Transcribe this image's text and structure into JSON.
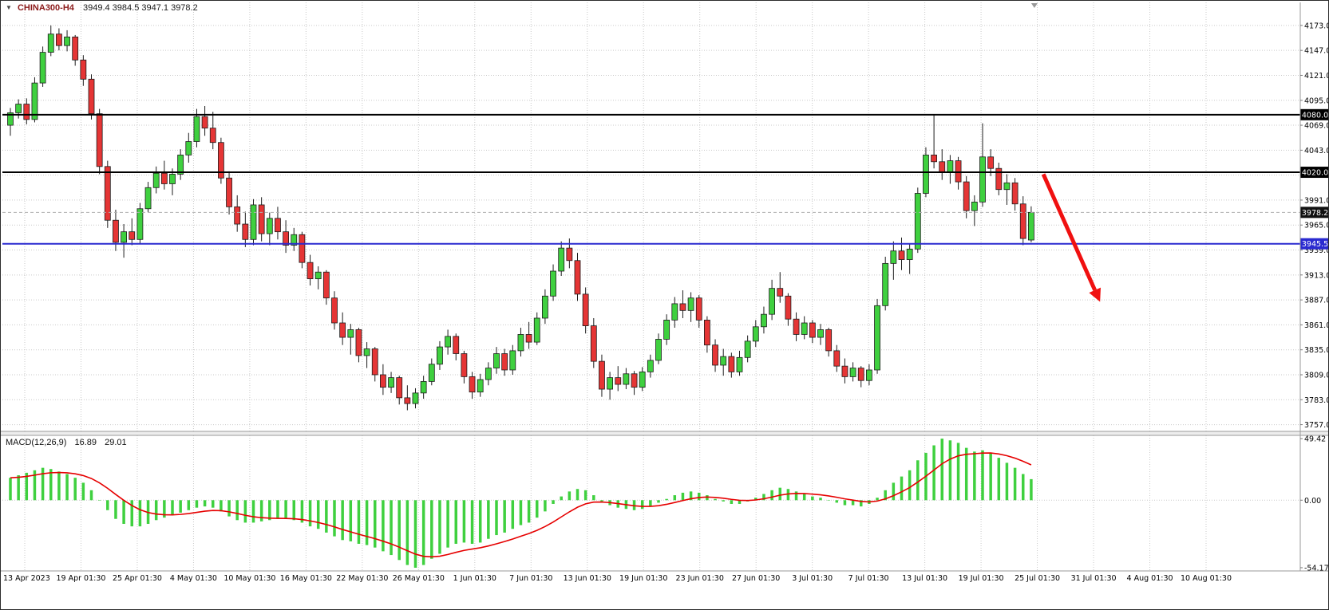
{
  "header": {
    "dropdown_icon": "▼",
    "symbol": "CHINA300-H4",
    "ohlc_text": "3949.4 3984.5 3947.1 3978.2"
  },
  "macd_label": {
    "name": "MACD(12,26,9)",
    "main_value": "16.89",
    "signal_value": "29.01"
  },
  "colors": {
    "bull": "#3fd03f",
    "bear": "#e53535",
    "candle_outline": "#1d1d1d",
    "wick": "#1d1d1d",
    "grid": "#c9c9c9",
    "hist": "#3fd03f",
    "signal": "#e60000",
    "separator": "#9a9a9a",
    "arrow": "#f01010",
    "badge_text": "#ffffff"
  },
  "price_scale": {
    "ticks": [
      "4173.0",
      "4147.0",
      "4121.0",
      "4095.0",
      "4069.0",
      "4043.0",
      "4017.0",
      "3991.0",
      "3965.0",
      "3939.0",
      "3913.0",
      "3887.0",
      "3861.0",
      "3835.0",
      "3809.0",
      "3783.0",
      "3757.0"
    ]
  },
  "macd_scale": {
    "labels": [
      {
        "text": "49.42",
        "value": 49.42
      },
      {
        "text": "0.00",
        "value": 0
      },
      {
        "text": "-54.17",
        "value": -54.17
      }
    ]
  },
  "time_axis": {
    "labels": [
      "13 Apr 2023",
      "19 Apr 01:30",
      "25 Apr 01:30",
      "4 May 01:30",
      "10 May 01:30",
      "16 May 01:30",
      "22 May 01:30",
      "26 May 01:30",
      "1 Jun 01:30",
      "7 Jun 01:30",
      "13 Jun 01:30",
      "19 Jun 01:30",
      "23 Jun 01:30",
      "27 Jun 01:30",
      "3 Jul 01:30",
      "7 Jul 01:30",
      "13 Jul 01:30",
      "19 Jul 01:30",
      "25 Jul 01:30",
      "31 Jul 01:30",
      "4 Aug 01:30",
      "10 Aug 01:30"
    ]
  },
  "price_lines": [
    {
      "label": "4080.0",
      "price": 4080.0,
      "line_color": "#000000",
      "badge_bg": "#000000",
      "width": 2,
      "dashed": false
    },
    {
      "label": "4020.0",
      "price": 4020.0,
      "line_color": "#000000",
      "badge_bg": "#000000",
      "width": 2,
      "dashed": false
    },
    {
      "label": "3978.2",
      "price": 3978.2,
      "line_color": "#b0b0b0",
      "badge_bg": "#111111",
      "width": 1,
      "dashed": true
    },
    {
      "label": "3945.5",
      "price": 3945.5,
      "line_color": "#2a2ad0",
      "badge_bg": "#2a2ad0",
      "width": 2,
      "dashed": false
    }
  ],
  "arrow": {
    "start_bar": 127.5,
    "start_price": 4018,
    "end_bar": 134.5,
    "end_price": 3885
  },
  "chart_data": {
    "type": "candlestick",
    "symbol": "CHINA300",
    "timeframe": "H4",
    "title": "CHINA300-H4",
    "last_ohlc": {
      "open": 3949.4,
      "high": 3984.5,
      "low": 3947.1,
      "close": 3978.2
    },
    "current_price": 3978.2,
    "horizontal_levels": [
      4080.0,
      4020.0,
      3945.5
    ],
    "main_axis_range": [
      3750,
      4197
    ],
    "price_grid_step": 26,
    "ohlc": [
      [
        4069,
        4087,
        4058,
        4082
      ],
      [
        4082,
        4096,
        4076,
        4091
      ],
      [
        4091,
        4097,
        4070,
        4075
      ],
      [
        4075,
        4119,
        4072,
        4113
      ],
      [
        4113,
        4151,
        4109,
        4145
      ],
      [
        4145,
        4173,
        4141,
        4164
      ],
      [
        4164,
        4170,
        4147,
        4152
      ],
      [
        4152,
        4168,
        4146,
        4161
      ],
      [
        4161,
        4163,
        4131,
        4137
      ],
      [
        4137,
        4142,
        4110,
        4117
      ],
      [
        4117,
        4122,
        4075,
        4081
      ],
      [
        4081,
        4086,
        4018,
        4026
      ],
      [
        4026,
        4032,
        3962,
        3970
      ],
      [
        3970,
        3981,
        3938,
        3947
      ],
      [
        3947,
        3966,
        3931,
        3958
      ],
      [
        3958,
        3972,
        3944,
        3950
      ],
      [
        3950,
        3988,
        3946,
        3982
      ],
      [
        3982,
        4010,
        3978,
        4004
      ],
      [
        4004,
        4026,
        3998,
        4019
      ],
      [
        4019,
        4032,
        4002,
        4008
      ],
      [
        4008,
        4024,
        3996,
        4018
      ],
      [
        4018,
        4044,
        4012,
        4038
      ],
      [
        4038,
        4061,
        4030,
        4052
      ],
      [
        4052,
        4086,
        4046,
        4078
      ],
      [
        4078,
        4089,
        4058,
        4066
      ],
      [
        4066,
        4083,
        4044,
        4051
      ],
      [
        4051,
        4056,
        4008,
        4014
      ],
      [
        4014,
        4021,
        3976,
        3984
      ],
      [
        3984,
        3996,
        3958,
        3966
      ],
      [
        3966,
        3979,
        3942,
        3950
      ],
      [
        3950,
        3992,
        3944,
        3986
      ],
      [
        3986,
        3994,
        3948,
        3956
      ],
      [
        3956,
        3978,
        3944,
        3972
      ],
      [
        3972,
        3984,
        3950,
        3958
      ],
      [
        3958,
        3970,
        3936,
        3944
      ],
      [
        3944,
        3962,
        3938,
        3955
      ],
      [
        3955,
        3958,
        3920,
        3926
      ],
      [
        3926,
        3934,
        3902,
        3909
      ],
      [
        3909,
        3922,
        3898,
        3916
      ],
      [
        3916,
        3918,
        3882,
        3889
      ],
      [
        3889,
        3896,
        3856,
        3863
      ],
      [
        3863,
        3874,
        3840,
        3848
      ],
      [
        3848,
        3862,
        3830,
        3856
      ],
      [
        3856,
        3858,
        3822,
        3829
      ],
      [
        3829,
        3843,
        3816,
        3836
      ],
      [
        3836,
        3838,
        3802,
        3809
      ],
      [
        3809,
        3820,
        3788,
        3796
      ],
      [
        3796,
        3812,
        3790,
        3806
      ],
      [
        3806,
        3808,
        3778,
        3785
      ],
      [
        3785,
        3798,
        3772,
        3779
      ],
      [
        3779,
        3795,
        3774,
        3790
      ],
      [
        3790,
        3808,
        3784,
        3802
      ],
      [
        3802,
        3826,
        3798,
        3820
      ],
      [
        3820,
        3844,
        3814,
        3838
      ],
      [
        3838,
        3856,
        3830,
        3849
      ],
      [
        3849,
        3852,
        3824,
        3831
      ],
      [
        3831,
        3834,
        3800,
        3807
      ],
      [
        3807,
        3812,
        3784,
        3791
      ],
      [
        3791,
        3810,
        3786,
        3804
      ],
      [
        3804,
        3822,
        3798,
        3816
      ],
      [
        3816,
        3838,
        3810,
        3831
      ],
      [
        3831,
        3836,
        3808,
        3814
      ],
      [
        3814,
        3840,
        3809,
        3834
      ],
      [
        3834,
        3858,
        3828,
        3851
      ],
      [
        3851,
        3864,
        3836,
        3843
      ],
      [
        3843,
        3874,
        3840,
        3868
      ],
      [
        3868,
        3898,
        3862,
        3891
      ],
      [
        3891,
        3924,
        3886,
        3917
      ],
      [
        3917,
        3948,
        3912,
        3941
      ],
      [
        3941,
        3951,
        3920,
        3928
      ],
      [
        3928,
        3936,
        3886,
        3893
      ],
      [
        3893,
        3900,
        3852,
        3860
      ],
      [
        3860,
        3868,
        3816,
        3823
      ],
      [
        3823,
        3830,
        3786,
        3794
      ],
      [
        3794,
        3812,
        3783,
        3806
      ],
      [
        3806,
        3818,
        3792,
        3799
      ],
      [
        3799,
        3816,
        3794,
        3810
      ],
      [
        3810,
        3813,
        3788,
        3796
      ],
      [
        3796,
        3817,
        3792,
        3812
      ],
      [
        3812,
        3830,
        3806,
        3824
      ],
      [
        3824,
        3852,
        3820,
        3846
      ],
      [
        3846,
        3872,
        3840,
        3866
      ],
      [
        3866,
        3890,
        3858,
        3883
      ],
      [
        3883,
        3897,
        3868,
        3876
      ],
      [
        3876,
        3895,
        3864,
        3889
      ],
      [
        3889,
        3892,
        3858,
        3866
      ],
      [
        3866,
        3870,
        3832,
        3840
      ],
      [
        3840,
        3846,
        3812,
        3819
      ],
      [
        3819,
        3836,
        3808,
        3828
      ],
      [
        3828,
        3832,
        3806,
        3812
      ],
      [
        3812,
        3834,
        3808,
        3827
      ],
      [
        3827,
        3850,
        3822,
        3844
      ],
      [
        3844,
        3866,
        3838,
        3859
      ],
      [
        3859,
        3880,
        3852,
        3872
      ],
      [
        3872,
        3908,
        3866,
        3899
      ],
      [
        3899,
        3916,
        3884,
        3891
      ],
      [
        3891,
        3894,
        3860,
        3867
      ],
      [
        3867,
        3874,
        3844,
        3851
      ],
      [
        3851,
        3870,
        3846,
        3863
      ],
      [
        3863,
        3866,
        3842,
        3848
      ],
      [
        3848,
        3862,
        3840,
        3856
      ],
      [
        3856,
        3858,
        3828,
        3834
      ],
      [
        3834,
        3840,
        3812,
        3818
      ],
      [
        3818,
        3826,
        3800,
        3807
      ],
      [
        3807,
        3822,
        3802,
        3816
      ],
      [
        3816,
        3818,
        3796,
        3803
      ],
      [
        3803,
        3820,
        3798,
        3814
      ],
      [
        3814,
        3888,
        3810,
        3881
      ],
      [
        3881,
        3932,
        3876,
        3925
      ],
      [
        3925,
        3948,
        3908,
        3938
      ],
      [
        3938,
        3952,
        3918,
        3929
      ],
      [
        3929,
        3946,
        3914,
        3940
      ],
      [
        3940,
        4004,
        3936,
        3998
      ],
      [
        3998,
        4046,
        3994,
        4038
      ],
      [
        4038,
        4080,
        4024,
        4031
      ],
      [
        4031,
        4044,
        4012,
        4020
      ],
      [
        4020,
        4038,
        4008,
        4032
      ],
      [
        4032,
        4036,
        4002,
        4010
      ],
      [
        4010,
        4016,
        3972,
        3980
      ],
      [
        3980,
        3996,
        3964,
        3989
      ],
      [
        3989,
        4071,
        3984,
        4036
      ],
      [
        4036,
        4044,
        4016,
        4024
      ],
      [
        4024,
        4030,
        3996,
        4002
      ],
      [
        4002,
        4018,
        3986,
        4009
      ],
      [
        4009,
        4014,
        3980,
        3987
      ],
      [
        3987,
        3995,
        3944,
        3951
      ],
      [
        3949.4,
        3984.5,
        3947.1,
        3978.2
      ]
    ],
    "macd": {
      "type": "bar+line",
      "params": [
        12,
        26,
        9
      ],
      "current_macd": 16.89,
      "current_signal": 29.01,
      "signal_period": 9,
      "axis_range": [
        -54.17,
        49.42
      ],
      "axis_labels": [
        "49.42",
        "0.00",
        "-54.17"
      ],
      "histogram": [
        18,
        20,
        22,
        24,
        26,
        25,
        23,
        21,
        18,
        14,
        8,
        0,
        -8,
        -15,
        -19,
        -21,
        -21,
        -19,
        -16,
        -14,
        -12,
        -10,
        -8,
        -6,
        -5,
        -6,
        -9,
        -13,
        -16,
        -18,
        -18,
        -17,
        -16,
        -15,
        -15,
        -16,
        -18,
        -21,
        -23,
        -26,
        -29,
        -32,
        -33,
        -35,
        -36,
        -38,
        -41,
        -44,
        -48,
        -52,
        -54.2,
        -52,
        -47,
        -43,
        -38,
        -35,
        -34,
        -35,
        -34,
        -31,
        -28,
        -26,
        -23,
        -20,
        -18,
        -14,
        -9,
        -3,
        3,
        7,
        9,
        8,
        4,
        -1,
        -4,
        -6,
        -7,
        -8,
        -7,
        -5,
        -2,
        1,
        4,
        6,
        7,
        6,
        4,
        1,
        -1,
        -3,
        -3,
        -1,
        2,
        5,
        8,
        10,
        9,
        7,
        5,
        3,
        2,
        0,
        -2,
        -4,
        -4,
        -5,
        -3,
        2,
        8,
        14,
        19,
        24,
        32,
        38,
        44,
        49.4,
        48,
        46,
        42,
        39,
        40,
        38,
        34,
        30,
        26,
        21,
        16.89
      ]
    }
  }
}
